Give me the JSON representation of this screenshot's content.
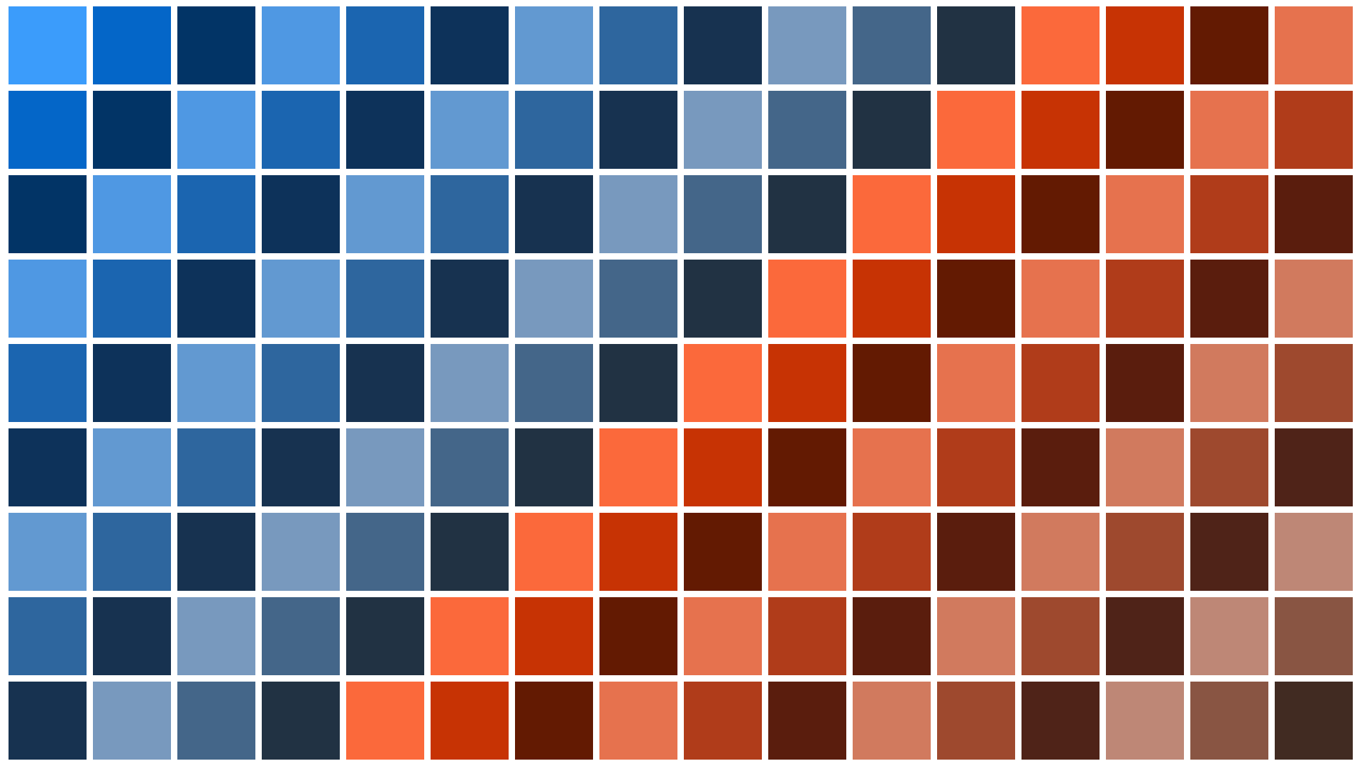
{
  "palette": {
    "blue": [
      "#3b9cfb",
      "#0466c8",
      "#023466",
      "#4f98e3",
      "#1b65b0",
      "#0d325a",
      "#6299d1",
      "#2e669e",
      "#173250",
      "#7899be",
      "#446689",
      "#213243"
    ],
    "orange": [
      "#fb693b",
      "#c73304",
      "#631a02",
      "#e6724e",
      "#b03c1a",
      "#5a1d0d",
      "#d17a5e",
      "#9e492e",
      "#4f2318",
      "#be8776",
      "#895543",
      "#412b22"
    ]
  },
  "grid": {
    "columns": 16,
    "rows": 9,
    "offset_per_row": 1
  }
}
